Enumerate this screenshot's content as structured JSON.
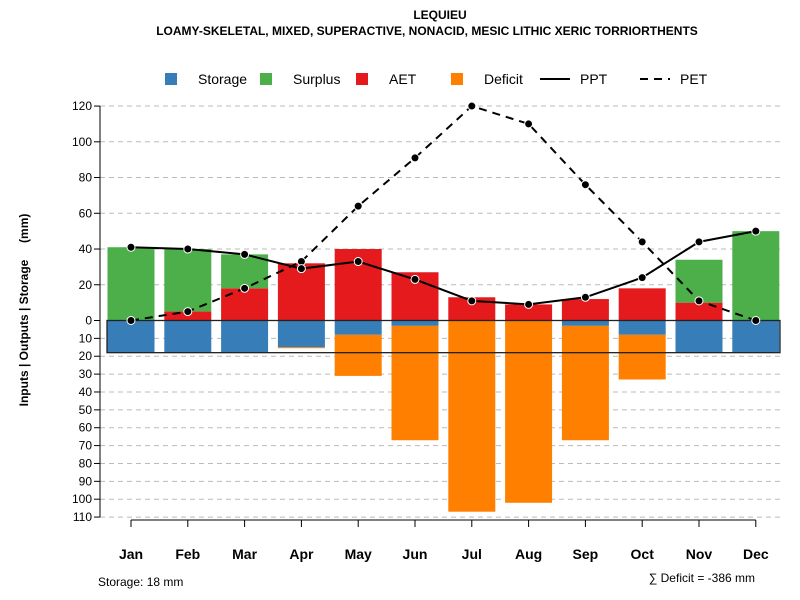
{
  "chart_data": {
    "type": "bar",
    "title": "LEQUIEU",
    "subtitle": "LOAMY-SKELETAL, MIXED, SUPERACTIVE, NONACID, MESIC LITHIC XERIC TORRIORTHENTS",
    "ylabel": "Inputs | Outputs | Storage     (mm)",
    "categories": [
      "Jan",
      "Feb",
      "Mar",
      "Apr",
      "May",
      "Jun",
      "Jul",
      "Aug",
      "Sep",
      "Oct",
      "Nov",
      "Dec"
    ],
    "ylim_top": [
      0,
      120
    ],
    "ylim_bottom": [
      0,
      110
    ],
    "yticks_top": [
      0,
      20,
      40,
      60,
      80,
      100,
      120
    ],
    "yticks_bottom": [
      10,
      20,
      30,
      40,
      50,
      60,
      70,
      80,
      90,
      100,
      110
    ],
    "legend": [
      "Storage",
      "Surplus",
      "AET",
      "Deficit",
      "PPT",
      "PET"
    ],
    "legend_position": "top",
    "colors": {
      "Storage": "#377EB8",
      "Surplus": "#4DAF4A",
      "AET": "#E41A1C",
      "Deficit": "#FF7F00"
    },
    "series": [
      {
        "name": "AET",
        "values": [
          0,
          5,
          18,
          32,
          40,
          27,
          13,
          9,
          12,
          18,
          10,
          0
        ]
      },
      {
        "name": "Surplus",
        "values": [
          41,
          35,
          19,
          0,
          0,
          0,
          0,
          0,
          0,
          0,
          24,
          50
        ]
      },
      {
        "name": "Storage",
        "values": [
          18,
          18,
          18,
          15,
          8,
          3,
          0,
          0,
          3,
          8,
          18,
          18
        ]
      },
      {
        "name": "Deficit",
        "values": [
          0,
          0,
          0,
          0.5,
          23,
          64,
          107,
          102,
          64,
          25,
          0,
          0
        ]
      },
      {
        "name": "PPT",
        "values": [
          41,
          40,
          37,
          29,
          33,
          23,
          11,
          9,
          13,
          24,
          44,
          50
        ]
      },
      {
        "name": "PET",
        "values": [
          0,
          5,
          18,
          33,
          64,
          91,
          120,
          110,
          76,
          44,
          11,
          0
        ]
      }
    ],
    "storage_capacity": 18,
    "footer_left": "Storage: 18 mm",
    "footer_right": "∑ Deficit = -386 mm"
  }
}
